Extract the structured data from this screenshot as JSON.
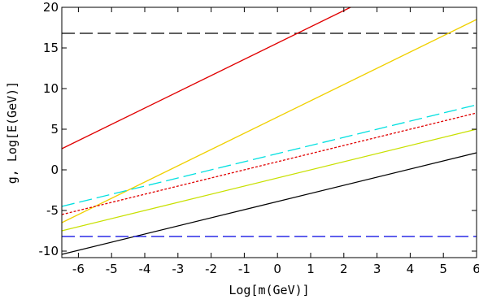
{
  "chart_data": {
    "type": "line",
    "xlabel": "Log[m(GeV)]",
    "ylabel": "g,  Log[E(GeV)]",
    "xlim": [
      -6.5,
      6
    ],
    "ylim": [
      -10.8,
      20
    ],
    "x_ticks": [
      -6,
      -5,
      -4,
      -3,
      -2,
      -1,
      0,
      1,
      2,
      3,
      4,
      5,
      6
    ],
    "y_ticks": [
      -10,
      -5,
      0,
      5,
      10,
      15,
      20
    ],
    "x_tick_labels": [
      "-6",
      "-5",
      "-4",
      "-3",
      "-2",
      "-1",
      "0",
      "1",
      "2",
      "3",
      "4",
      "5",
      "6"
    ],
    "y_tick_labels": [
      "-10",
      "-5",
      "0",
      "5",
      "10",
      "15",
      "20"
    ],
    "grid": false,
    "series": [
      {
        "color": "#000000",
        "style": "dashed",
        "x": [
          -6.5,
          6
        ],
        "y": [
          16.8,
          16.8
        ]
      },
      {
        "color": "#e00000",
        "style": "solid",
        "x": [
          -6.5,
          2.2
        ],
        "y": [
          2.6,
          20
        ]
      },
      {
        "color": "#f0d000",
        "style": "solid",
        "x": [
          -6.5,
          6
        ],
        "y": [
          -6.5,
          18.5
        ]
      },
      {
        "color": "#00e0e0",
        "style": "dashed",
        "x": [
          -6.5,
          6
        ],
        "y": [
          -4.5,
          8.0
        ]
      },
      {
        "color": "#e00000",
        "style": "dotted",
        "x": [
          -6.5,
          6
        ],
        "y": [
          -5.5,
          7.0
        ]
      },
      {
        "color": "#c8e000",
        "style": "solid",
        "x": [
          -6.5,
          6
        ],
        "y": [
          -7.5,
          5.0
        ]
      },
      {
        "color": "#000000",
        "style": "solid",
        "x": [
          -6.5,
          6
        ],
        "y": [
          -10.4,
          2.1
        ]
      },
      {
        "color": "#0000e0",
        "style": "dashed",
        "x": [
          -6.5,
          6
        ],
        "y": [
          -8.2,
          -8.2
        ]
      }
    ]
  }
}
